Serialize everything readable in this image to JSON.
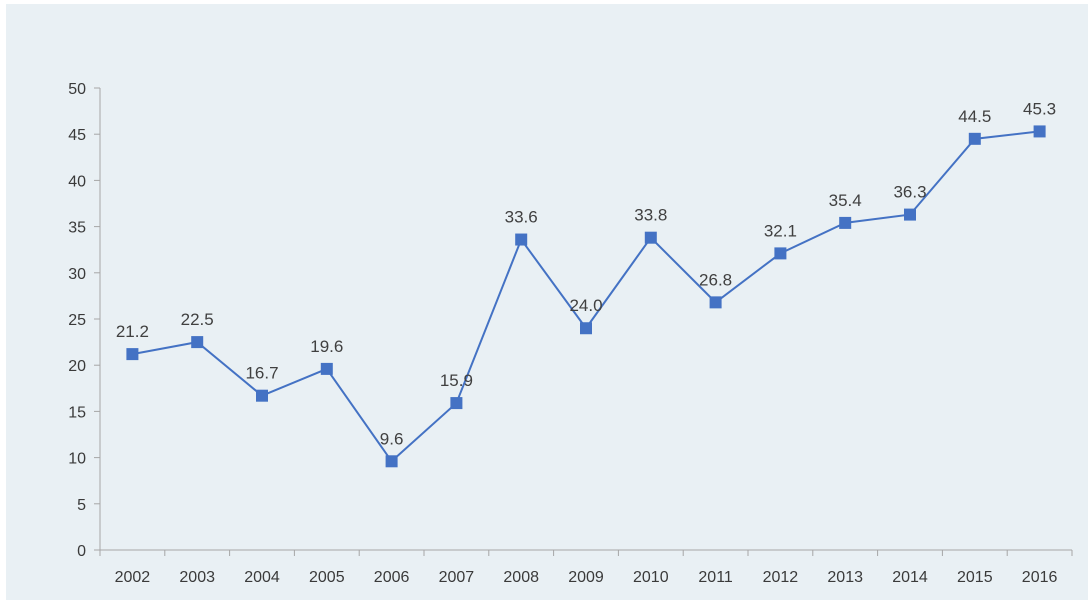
{
  "chart_data": {
    "type": "line",
    "title": "",
    "xlabel": "",
    "ylabel": "",
    "categories": [
      "2002",
      "2003",
      "2004",
      "2005",
      "2006",
      "2007",
      "2008",
      "2009",
      "2010",
      "2011",
      "2012",
      "2013",
      "2014",
      "2015",
      "2016"
    ],
    "series": [
      {
        "values": [
          21.2,
          22.5,
          16.7,
          19.6,
          9.6,
          15.9,
          33.6,
          24.0,
          33.8,
          26.8,
          32.1,
          35.4,
          36.3,
          44.5,
          45.3
        ],
        "data_labels": [
          "21.2",
          "22.5",
          "16.7",
          "19.6",
          "9.6",
          "15.9",
          "33.6",
          "24.0",
          "33.8",
          "26.8",
          "32.1",
          "35.4",
          "36.3",
          "44.5",
          "45.3"
        ]
      }
    ],
    "ylim": [
      0,
      50
    ],
    "yticks": [
      "0",
      "5",
      "10",
      "15",
      "20",
      "25",
      "30",
      "35",
      "40",
      "45",
      "50"
    ],
    "grid": false,
    "legend": "none",
    "marker": "square",
    "colors": {
      "line": "#4472c4",
      "axis": "#a6a6a6",
      "background": "#e9f0f4"
    }
  }
}
